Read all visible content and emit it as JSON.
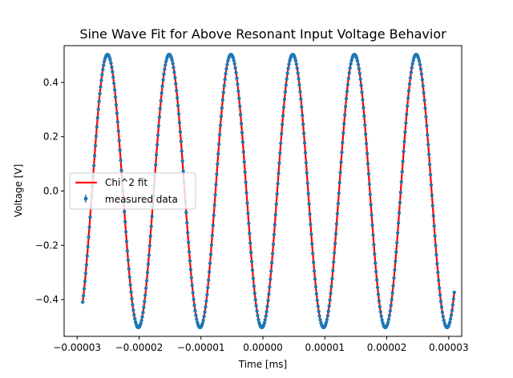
{
  "chart_data": {
    "type": "scatter",
    "title": "Sine Wave Fit for Above Resonant Input Voltage Behavior",
    "xlabel": "Time [ms]",
    "ylabel": "Voltage [V]",
    "xlim": [
      -3.21e-05,
      3.21e-05
    ],
    "ylim": [
      -0.5355,
      0.5355
    ],
    "xticks": [
      -3e-05,
      -2e-05,
      -1e-05,
      0.0,
      1e-05,
      2e-05,
      3e-05
    ],
    "xtick_labels": [
      "−0.00003",
      "−0.00002",
      "−0.00001",
      "0.00000",
      "0.00001",
      "0.00002",
      "0.00003"
    ],
    "yticks": [
      -0.4,
      -0.2,
      0.0,
      0.2,
      0.4
    ],
    "ytick_labels": [
      "−0.4",
      "−0.2",
      "0.0",
      "0.2",
      "0.4"
    ],
    "grid": false,
    "legend": {
      "placement": "center-left",
      "entries": [
        "Chi^2 fit",
        "measured data"
      ]
    },
    "series": [
      {
        "name": "measured data",
        "kind": "errorbar-points",
        "color": "#1f77b4",
        "x_range": [
          -2.91e-05,
          3.09e-05
        ],
        "n_points": 500,
        "model": {
          "amplitude": 0.503,
          "period": 9.97e-06,
          "first_peak_x": -2.51e-05
        }
      },
      {
        "name": "Chi^2 fit",
        "kind": "line",
        "color": "#ff0000",
        "x_range": [
          -2.91e-05,
          3.09e-05
        ],
        "model": {
          "amplitude": 0.503,
          "period": 9.97e-06,
          "first_peak_x": -2.51e-05
        }
      }
    ]
  }
}
